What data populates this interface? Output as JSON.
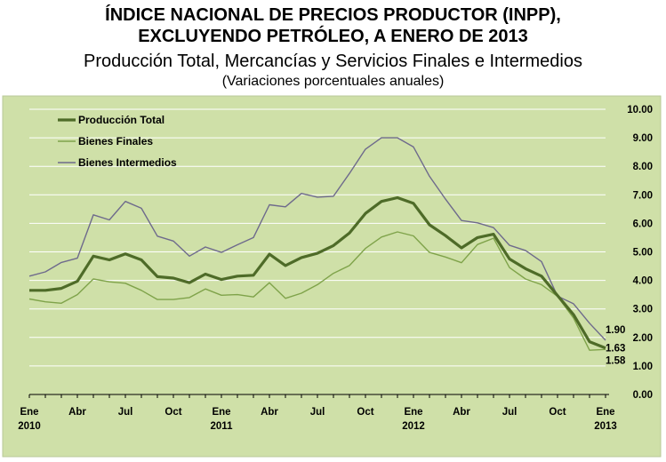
{
  "chart_data": {
    "type": "line",
    "title_line1": "ÍNDICE NACIONAL DE PRECIOS PRODUCTOR (INPP),",
    "title_line2": "EXCLUYENDO PETRÓLEO, A ENERO DE 2013",
    "subtitle": "Producción Total, Mercancías y Servicios Finales e Intermedios",
    "subtitle2": "(Variaciones porcentuales anuales)",
    "y_range": [
      0,
      10
    ],
    "y_ticks": [
      "0.00",
      "1.00",
      "2.00",
      "3.00",
      "4.00",
      "5.00",
      "6.00",
      "7.00",
      "8.00",
      "9.00",
      "10.00"
    ],
    "x_ticks": [
      {
        "month": "Ene",
        "year": "2010",
        "index": 0
      },
      {
        "month": "Abr",
        "year": "",
        "index": 3
      },
      {
        "month": "Jul",
        "year": "",
        "index": 6
      },
      {
        "month": "Oct",
        "year": "",
        "index": 9
      },
      {
        "month": "Ene",
        "year": "2011",
        "index": 12
      },
      {
        "month": "Abr",
        "year": "",
        "index": 15
      },
      {
        "month": "Jul",
        "year": "",
        "index": 18
      },
      {
        "month": "Oct",
        "year": "",
        "index": 21
      },
      {
        "month": "Ene",
        "year": "2012",
        "index": 24
      },
      {
        "month": "Abr",
        "year": "",
        "index": 27
      },
      {
        "month": "Jul",
        "year": "",
        "index": 30
      },
      {
        "month": "Oct",
        "year": "",
        "index": 33
      },
      {
        "month": "Ene",
        "year": "2013",
        "index": 36
      }
    ],
    "grid": "horizontal",
    "legend_position": "top-left",
    "background_color": "#cfe0a8",
    "series": [
      {
        "name": "Producción Total",
        "color": "#4e6b28",
        "values": [
          3.65,
          3.65,
          3.72,
          3.97,
          4.85,
          4.72,
          4.93,
          4.72,
          4.13,
          4.08,
          3.92,
          4.22,
          4.03,
          4.15,
          4.18,
          4.92,
          4.52,
          4.8,
          4.95,
          5.22,
          5.66,
          6.35,
          6.77,
          6.9,
          6.7,
          5.95,
          5.57,
          5.14,
          5.5,
          5.62,
          4.75,
          4.41,
          4.15,
          3.47,
          2.8,
          1.85,
          1.63
        ],
        "end_label": "1.63"
      },
      {
        "name": "Bienes Finales",
        "color": "#7fa34a",
        "values": [
          3.35,
          3.25,
          3.2,
          3.5,
          4.05,
          3.95,
          3.9,
          3.65,
          3.33,
          3.33,
          3.4,
          3.7,
          3.48,
          3.5,
          3.42,
          3.92,
          3.37,
          3.55,
          3.85,
          4.25,
          4.52,
          5.12,
          5.52,
          5.7,
          5.56,
          4.98,
          4.82,
          4.62,
          5.26,
          5.48,
          4.45,
          4.05,
          3.85,
          3.44,
          2.68,
          1.55,
          1.58
        ],
        "end_label": "1.58"
      },
      {
        "name": "Bienes Intermedios",
        "color": "#6e6a8c",
        "values": [
          4.15,
          4.3,
          4.63,
          4.78,
          6.3,
          6.12,
          6.77,
          6.53,
          5.55,
          5.38,
          4.85,
          5.17,
          4.98,
          5.25,
          5.5,
          6.65,
          6.58,
          7.05,
          6.92,
          6.95,
          7.75,
          8.6,
          9.0,
          9.0,
          8.68,
          7.65,
          6.85,
          6.1,
          6.02,
          5.85,
          5.23,
          5.05,
          4.66,
          3.45,
          3.18,
          2.5,
          1.9
        ],
        "end_label": "1.90"
      }
    ]
  }
}
